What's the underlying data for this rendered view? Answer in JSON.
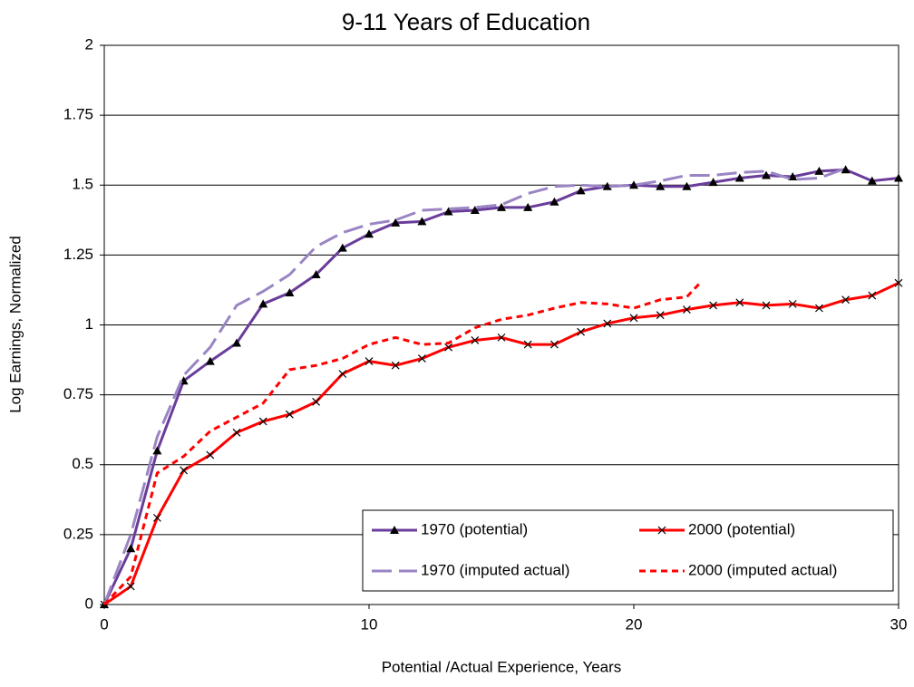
{
  "chart_data": {
    "type": "line",
    "title": "9-11 Years of Education",
    "x_label": "Potential /Actual Experience, Years",
    "y_label": "Log Earnings, Normalized",
    "xlim": [
      0,
      30
    ],
    "xticks": [
      0,
      10,
      20,
      30
    ],
    "ylim": [
      0,
      2
    ],
    "yticks": [
      0,
      0.25,
      0.5,
      0.75,
      1,
      1.25,
      1.5,
      1.75,
      2
    ],
    "grid": true,
    "legend": "lower right",
    "series": [
      {
        "name": "1970 (potential)",
        "color": "#6a3d9a",
        "marker": "triangle",
        "dash": "solid",
        "x": [
          0,
          1,
          2,
          3,
          4,
          5,
          6,
          7,
          8,
          9,
          10,
          11,
          12,
          13,
          14,
          15,
          16,
          17,
          18,
          19,
          20,
          21,
          22,
          23,
          24,
          25,
          26,
          27,
          28,
          29,
          30
        ],
        "values": [
          0,
          0.2,
          0.55,
          0.8,
          0.87,
          0.935,
          1.075,
          1.115,
          1.18,
          1.275,
          1.325,
          1.365,
          1.37,
          1.405,
          1.41,
          1.42,
          1.42,
          1.44,
          1.48,
          1.495,
          1.5,
          1.495,
          1.495,
          1.51,
          1.525,
          1.535,
          1.53,
          1.55,
          1.555,
          1.515,
          1.525
        ]
      },
      {
        "name": "2000 (potential)",
        "color": "#ff0000",
        "marker": "x",
        "dash": "solid",
        "x": [
          0,
          1,
          2,
          3,
          4,
          5,
          6,
          7,
          8,
          9,
          10,
          11,
          12,
          13,
          14,
          15,
          16,
          17,
          18,
          19,
          20,
          21,
          22,
          23,
          24,
          25,
          26,
          27,
          28,
          29,
          30
        ],
        "values": [
          0,
          0.065,
          0.31,
          0.48,
          0.535,
          0.615,
          0.655,
          0.68,
          0.725,
          0.825,
          0.87,
          0.855,
          0.88,
          0.92,
          0.945,
          0.955,
          0.93,
          0.93,
          0.975,
          1.005,
          1.025,
          1.035,
          1.055,
          1.07,
          1.08,
          1.07,
          1.075,
          1.06,
          1.09,
          1.105,
          1.15
        ]
      },
      {
        "name": "1970 (imputed actual)",
        "color": "#9a85c4",
        "marker": "none",
        "dash": "long",
        "x": [
          0,
          1,
          2,
          3,
          4,
          5,
          6,
          7,
          8,
          9,
          10,
          11,
          12,
          13,
          14,
          15,
          16,
          17,
          18,
          19,
          20,
          21,
          22,
          23,
          24,
          25,
          26,
          27,
          28
        ],
        "values": [
          0,
          0.25,
          0.6,
          0.82,
          0.92,
          1.07,
          1.12,
          1.18,
          1.28,
          1.33,
          1.36,
          1.375,
          1.41,
          1.415,
          1.42,
          1.43,
          1.47,
          1.495,
          1.5,
          1.495,
          1.5,
          1.515,
          1.535,
          1.535,
          1.545,
          1.55,
          1.52,
          1.525,
          1.56
        ]
      },
      {
        "name": "2000 (imputed actual)",
        "color": "#ff0000",
        "marker": "none",
        "dash": "short",
        "x": [
          0,
          1,
          2,
          3,
          4,
          5,
          6,
          7,
          8,
          9,
          10,
          11,
          12,
          13,
          14,
          15,
          16,
          17,
          18,
          19,
          20,
          21,
          22,
          22.5
        ],
        "values": [
          0,
          0.1,
          0.47,
          0.53,
          0.62,
          0.67,
          0.72,
          0.84,
          0.855,
          0.88,
          0.93,
          0.955,
          0.93,
          0.935,
          0.99,
          1.02,
          1.035,
          1.06,
          1.08,
          1.075,
          1.06,
          1.09,
          1.1,
          1.15
        ]
      }
    ]
  }
}
